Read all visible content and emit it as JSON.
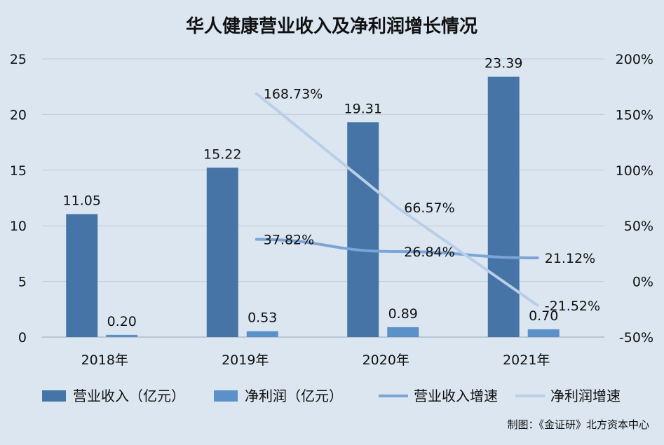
{
  "chart_data": {
    "type": "bar",
    "title": "华人健康营业收入及净利润增长情况",
    "categories": [
      "2018年",
      "2019年",
      "2020年",
      "2021年"
    ],
    "y_left": {
      "ticks": [
        "0",
        "5",
        "10",
        "15",
        "20",
        "25"
      ],
      "ylim": [
        0,
        25
      ]
    },
    "y_right": {
      "ticks": [
        "-50%",
        "0%",
        "50%",
        "100%",
        "150%",
        "200%"
      ],
      "ylim": [
        -50,
        200
      ]
    },
    "series": [
      {
        "name": "营业收入（亿元）",
        "kind": "bar",
        "axis": "left",
        "color": "#4674a6",
        "values": [
          11.05,
          15.22,
          19.31,
          23.39
        ],
        "labels": [
          "11.05",
          "15.22",
          "19.31",
          "23.39"
        ]
      },
      {
        "name": "净利润（亿元）",
        "kind": "bar",
        "axis": "left",
        "color": "#5b90c8",
        "values": [
          0.2,
          0.53,
          0.89,
          0.7
        ],
        "labels": [
          "0.20",
          "0.53",
          "0.89",
          "0.70"
        ]
      },
      {
        "name": "营业收入增速",
        "kind": "line",
        "axis": "right",
        "color": "#7aa5d6",
        "values": [
          null,
          37.82,
          26.84,
          21.12
        ],
        "labels": [
          "",
          "37.82%",
          "26.84%",
          "21.12%"
        ]
      },
      {
        "name": "净利润增速",
        "kind": "line",
        "axis": "right",
        "color": "#b9cfe8",
        "values": [
          null,
          168.73,
          66.57,
          -21.52
        ],
        "labels": [
          "",
          "168.73%",
          "66.57%",
          "-21.52%"
        ]
      }
    ],
    "grid": true,
    "legend": "bottom"
  },
  "source": "制图：《金证研》北方资本中心"
}
